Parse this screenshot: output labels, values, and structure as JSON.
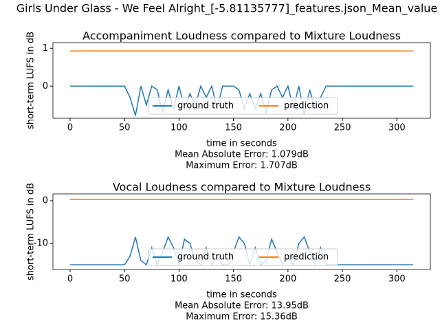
{
  "title": "Girls Under Glass - We Feel Alright_[-5.81135777]_features.json_Mean_value",
  "chart_data": [
    {
      "type": "line",
      "title": "Accompaniment Loudness compared to Mixture Loudness",
      "x_label": "time in seconds",
      "y_label": "short-term LUFS in dB",
      "annotations": [
        "Mean Absolute Error: 1.079dB",
        "Maximum Error: 1.707dB"
      ],
      "x": [
        0,
        5,
        10,
        15,
        20,
        25,
        30,
        35,
        40,
        45,
        50,
        55,
        60,
        65,
        70,
        75,
        80,
        85,
        90,
        95,
        100,
        105,
        110,
        115,
        120,
        125,
        130,
        135,
        140,
        145,
        150,
        155,
        160,
        165,
        170,
        175,
        180,
        185,
        190,
        195,
        200,
        205,
        210,
        215,
        220,
        225,
        230,
        235,
        240,
        245,
        250,
        255,
        260,
        265,
        270,
        275,
        280,
        285,
        290,
        295,
        300,
        305,
        310,
        315
      ],
      "series": [
        {
          "name": "ground truth",
          "color": "#1f77b4",
          "values": [
            0,
            0,
            0,
            0,
            0,
            0,
            0,
            0,
            0,
            0,
            0,
            -0.3,
            -0.78,
            0,
            -0.5,
            0,
            -0.1,
            -0.7,
            -0.1,
            -0.6,
            0,
            -0.6,
            -0.2,
            -0.5,
            0,
            -0.3,
            0,
            -0.6,
            0,
            0,
            0,
            -0.1,
            -0.6,
            -0.2,
            -0.6,
            -0.2,
            -0.7,
            -0.1,
            0,
            -0.3,
            0,
            -0.6,
            0,
            -0.75,
            -0.1,
            -0.6,
            -0.3,
            0,
            0,
            0,
            0,
            0,
            0,
            0,
            0,
            0,
            0,
            0,
            0,
            0,
            0,
            0,
            0,
            0
          ]
        },
        {
          "name": "prediction",
          "color": "#ff7f0e",
          "values": [
            0.93,
            0.93,
            0.93,
            0.93,
            0.93,
            0.93,
            0.93,
            0.93,
            0.93,
            0.93,
            0.93,
            0.93,
            0.93,
            0.93,
            0.93,
            0.93,
            0.93,
            0.93,
            0.93,
            0.93,
            0.93,
            0.93,
            0.93,
            0.93,
            0.93,
            0.93,
            0.93,
            0.93,
            0.93,
            0.93,
            0.93,
            0.93,
            0.93,
            0.93,
            0.93,
            0.93,
            0.93,
            0.93,
            0.93,
            0.93,
            0.93,
            0.93,
            0.93,
            0.93,
            0.93,
            0.93,
            0.93,
            0.93,
            0.93,
            0.93,
            0.93,
            0.93,
            0.93,
            0.93,
            0.93,
            0.93,
            0.93,
            0.93,
            0.93,
            0.93,
            0.93,
            0.93,
            0.93,
            0.93
          ]
        }
      ],
      "xlim": [
        -15.75,
        330.75
      ],
      "xticks": [
        0,
        50,
        100,
        150,
        200,
        250,
        300
      ],
      "ylim": [
        -0.85,
        1.15
      ],
      "yticks": [
        0,
        1
      ],
      "legend": "lower center"
    },
    {
      "type": "line",
      "title": "Vocal Loudness compared to Mixture Loudness",
      "x_label": "time in seconds",
      "y_label": "short-term LUFS in dB",
      "annotations": [
        "Mean Absolute Error: 13.95dB",
        "Maximum Error: 15.36dB"
      ],
      "x": [
        0,
        5,
        10,
        15,
        20,
        25,
        30,
        35,
        40,
        45,
        50,
        55,
        60,
        65,
        70,
        75,
        80,
        85,
        90,
        95,
        100,
        105,
        110,
        115,
        120,
        125,
        130,
        135,
        140,
        145,
        150,
        155,
        160,
        165,
        170,
        175,
        180,
        185,
        190,
        195,
        200,
        205,
        210,
        215,
        220,
        225,
        230,
        235,
        240,
        245,
        250,
        255,
        260,
        265,
        270,
        275,
        280,
        285,
        290,
        295,
        300,
        305,
        310,
        315
      ],
      "series": [
        {
          "name": "ground truth",
          "color": "#1f77b4",
          "values": [
            -15,
            -15,
            -15,
            -15,
            -15,
            -15,
            -15,
            -15,
            -15,
            -15,
            -15,
            -13,
            -8.5,
            -14,
            -15,
            -11,
            -15,
            -12,
            -8.5,
            -11,
            -15,
            -9,
            -10,
            -14,
            -15,
            -11,
            -15,
            -13,
            -15,
            -15,
            -12,
            -8.5,
            -10,
            -15,
            -11,
            -15,
            -14,
            -9,
            -12,
            -15,
            -13,
            -15,
            -10,
            -8.5,
            -12,
            -15,
            -11,
            -15,
            -15,
            -15,
            -15,
            -15,
            -15,
            -15,
            -15,
            -15,
            -15,
            -15,
            -15,
            -15,
            -15,
            -15,
            -15,
            -15
          ]
        },
        {
          "name": "prediction",
          "color": "#ff7f0e",
          "values": [
            0.3,
            0.3,
            0.3,
            0.3,
            0.3,
            0.3,
            0.3,
            0.3,
            0.3,
            0.3,
            0.3,
            0.3,
            0.3,
            0.3,
            0.3,
            0.3,
            0.3,
            0.3,
            0.3,
            0.3,
            0.3,
            0.3,
            0.3,
            0.3,
            0.3,
            0.3,
            0.3,
            0.3,
            0.3,
            0.3,
            0.3,
            0.3,
            0.3,
            0.3,
            0.3,
            0.3,
            0.3,
            0.3,
            0.3,
            0.3,
            0.3,
            0.3,
            0.3,
            0.3,
            0.3,
            0.3,
            0.3,
            0.3,
            0.3,
            0.3,
            0.3,
            0.3,
            0.3,
            0.3,
            0.3,
            0.3,
            0.3,
            0.3,
            0.3,
            0.3,
            0.3,
            0.3,
            0.3,
            0.3
          ]
        }
      ],
      "xlim": [
        -15.75,
        330.75
      ],
      "xticks": [
        0,
        50,
        100,
        150,
        200,
        250,
        300
      ],
      "ylim": [
        -16.1,
        1.6
      ],
      "yticks": [
        -10,
        0
      ],
      "legend": "lower center"
    }
  ]
}
